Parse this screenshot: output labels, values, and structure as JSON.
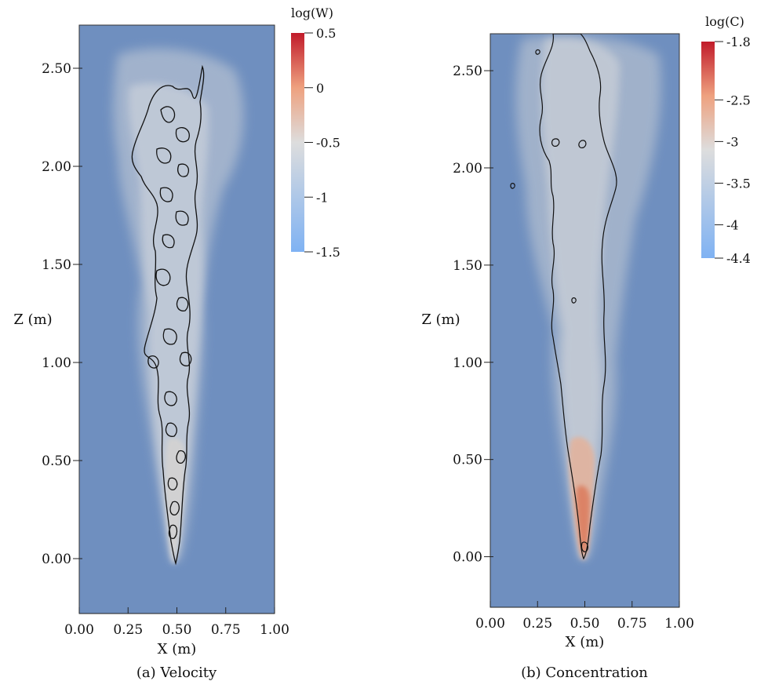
{
  "colors": {
    "background": "#6f8fbf",
    "plume_light": "#b9c6d6",
    "plume_mid": "#cfd4dc",
    "plume_hot": "#e7a487",
    "plume_core": "#d9694f",
    "contour": "#111111",
    "colorbar_low": "#7fb2f3",
    "colorbar_mid": "#dddddd",
    "colorbar_high": "#c11b2a"
  },
  "chart_data": [
    {
      "type": "heatmap",
      "title": "",
      "xlabel": "X (m)",
      "ylabel": "Z (m)",
      "caption": "(a) Velocity",
      "x_ticks": [
        "0.00",
        "0.25",
        "0.50",
        "0.75",
        "1.00"
      ],
      "y_ticks": [
        "0.00",
        "0.50",
        "1.00",
        "1.50",
        "2.00",
        "2.50"
      ],
      "x_tick_values": [
        0.0,
        0.25,
        0.5,
        0.75,
        1.0
      ],
      "y_tick_values": [
        0.0,
        0.5,
        1.0,
        1.5,
        2.0,
        2.5
      ],
      "xlim": [
        0.0,
        1.0
      ],
      "ylim": [
        -0.28,
        2.72
      ],
      "colorbar": {
        "label": "log(W)",
        "ticks": [
          "0.5",
          "0",
          "-0.5",
          "-1",
          "-1.5"
        ],
        "tick_values": [
          0.5,
          0.0,
          -0.5,
          -1.0,
          -1.5
        ],
        "range": [
          -1.5,
          0.5
        ]
      }
    },
    {
      "type": "heatmap",
      "title": "",
      "xlabel": "X (m)",
      "ylabel": "Z (m)",
      "caption": "(b) Concentration",
      "x_ticks": [
        "0.00",
        "0.25",
        "0.50",
        "0.75",
        "1.00"
      ],
      "y_ticks": [
        "0.00",
        "0.50",
        "1.00",
        "1.50",
        "2.00",
        "2.50"
      ],
      "x_tick_values": [
        0.0,
        0.25,
        0.5,
        0.75,
        1.0
      ],
      "y_tick_values": [
        0.0,
        0.5,
        1.0,
        1.5,
        2.0,
        2.5
      ],
      "xlim": [
        0.0,
        1.0
      ],
      "ylim": [
        -0.26,
        2.69
      ],
      "colorbar": {
        "label": "log(C)",
        "ticks": [
          "-1.8",
          "-2.5",
          "-3",
          "-3.5",
          "-4",
          "-4.4"
        ],
        "tick_values": [
          -1.8,
          -2.5,
          -3.0,
          -3.5,
          -4.0,
          -4.4
        ],
        "range": [
          -4.4,
          -1.8
        ]
      }
    }
  ]
}
